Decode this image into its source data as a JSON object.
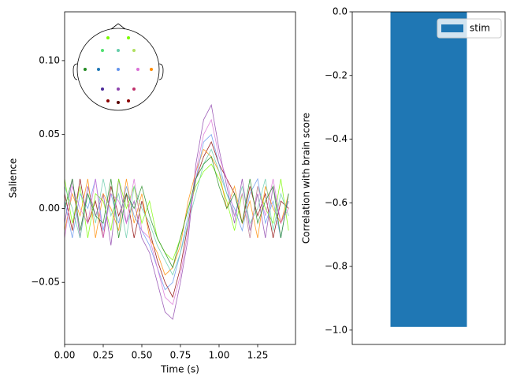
{
  "chart_data": [
    {
      "type": "line",
      "xlabel": "Time (s)",
      "ylabel": "Salience",
      "x": [
        0,
        0.05,
        0.1,
        0.15,
        0.2,
        0.25,
        0.3,
        0.35,
        0.4,
        0.45,
        0.5,
        0.55,
        0.6,
        0.65,
        0.7,
        0.75,
        0.8,
        0.85,
        0.9,
        0.95,
        1.0,
        1.05,
        1.1,
        1.15,
        1.2,
        1.25,
        1.3,
        1.35,
        1.4,
        1.45
      ],
      "series": [
        {
          "color": "#8b0000",
          "values": [
            0.01,
            -0.015,
            0.02,
            -0.01,
            0.005,
            -0.02,
            0.015,
            -0.005,
            0.01,
            -0.02,
            0.005,
            -0.015,
            -0.035,
            -0.05,
            -0.06,
            -0.04,
            -0.01,
            0.02,
            0.035,
            0.045,
            0.03,
            0.02,
            0.01,
            -0.01,
            0.015,
            -0.005,
            0.01,
            -0.02,
            0.005,
            0.0
          ]
        },
        {
          "color": "#8e44ad",
          "values": [
            -0.01,
            0.02,
            -0.02,
            0.015,
            -0.005,
            0.01,
            -0.025,
            0.02,
            -0.01,
            0.005,
            -0.02,
            -0.03,
            -0.05,
            -0.07,
            -0.075,
            -0.05,
            -0.02,
            0.03,
            0.06,
            0.07,
            0.04,
            0.015,
            -0.01,
            0.02,
            -0.015,
            0.01,
            -0.02,
            0.015,
            -0.01,
            0.005
          ]
        },
        {
          "color": "#7cfc00",
          "values": [
            0.02,
            -0.01,
            0.015,
            -0.02,
            0.01,
            0.005,
            -0.015,
            0.02,
            0.0,
            0.015,
            -0.01,
            0.005,
            -0.02,
            -0.03,
            -0.035,
            -0.02,
            0.0,
            0.015,
            0.025,
            0.03,
            0.02,
            0.005,
            -0.015,
            0.01,
            -0.02,
            0.015,
            0.0,
            -0.01,
            0.02,
            -0.015
          ]
        },
        {
          "color": "#ff8c00",
          "values": [
            -0.015,
            0.01,
            -0.005,
            0.02,
            -0.02,
            0.01,
            0.0,
            -0.015,
            0.02,
            -0.01,
            0.01,
            -0.02,
            -0.03,
            -0.045,
            -0.04,
            -0.025,
            0.005,
            0.025,
            0.04,
            0.035,
            0.025,
            0.0,
            0.015,
            -0.01,
            0.005,
            -0.02,
            0.015,
            0.0,
            -0.01,
            0.01
          ]
        },
        {
          "color": "#6495ed",
          "values": [
            0.005,
            -0.02,
            0.01,
            0.0,
            0.02,
            -0.015,
            0.01,
            -0.01,
            0.015,
            -0.005,
            -0.015,
            -0.025,
            -0.04,
            -0.055,
            -0.05,
            -0.03,
            -0.005,
            0.02,
            0.045,
            0.05,
            0.03,
            0.01,
            0.0,
            -0.015,
            0.01,
            0.02,
            -0.01,
            0.005,
            -0.02,
            0.01
          ]
        },
        {
          "color": "#66cdaa",
          "values": [
            0.015,
            0.0,
            -0.02,
            0.01,
            -0.01,
            0.02,
            -0.005,
            0.01,
            -0.02,
            0.015,
            0.0,
            -0.01,
            -0.025,
            -0.035,
            -0.045,
            -0.03,
            -0.01,
            0.01,
            0.03,
            0.04,
            0.025,
            0.01,
            -0.005,
            0.015,
            -0.01,
            0.0,
            0.02,
            -0.015,
            0.01,
            -0.005
          ]
        },
        {
          "color": "#da70d6",
          "values": [
            -0.02,
            0.015,
            0.0,
            -0.01,
            0.02,
            -0.02,
            0.01,
            0.005,
            -0.01,
            0.02,
            -0.015,
            -0.02,
            -0.04,
            -0.06,
            -0.065,
            -0.045,
            -0.015,
            0.025,
            0.05,
            0.06,
            0.035,
            0.02,
            -0.005,
            0.01,
            -0.02,
            0.015,
            -0.005,
            0.02,
            -0.01,
            0.0
          ]
        },
        {
          "color": "#228b22",
          "values": [
            0.0,
            0.02,
            -0.015,
            0.01,
            -0.005,
            -0.01,
            0.02,
            -0.02,
            0.01,
            0.0,
            0.015,
            -0.005,
            -0.02,
            -0.03,
            -0.04,
            -0.02,
            0.0,
            0.02,
            0.03,
            0.035,
            0.015,
            0.0,
            0.01,
            -0.01,
            0.02,
            -0.01,
            0.005,
            0.015,
            -0.02,
            0.01
          ]
        }
      ],
      "xlim": [
        0,
        1.495
      ],
      "ylim": [
        -0.092,
        0.133
      ],
      "xticks": [
        {
          "value": 0,
          "label": "0.00"
        },
        {
          "value": 0.25,
          "label": "0.25"
        },
        {
          "value": 0.5,
          "label": "0.50"
        },
        {
          "value": 0.75,
          "label": "0.75"
        },
        {
          "value": 1,
          "label": "1.00"
        },
        {
          "value": 1.25,
          "label": "1.25"
        }
      ],
      "yticks": [
        {
          "value": -0.05,
          "label": "−0.05"
        },
        {
          "value": 0,
          "label": "0.00"
        },
        {
          "value": 0.05,
          "label": "0.05"
        },
        {
          "value": 0.1,
          "label": "0.10"
        }
      ]
    },
    {
      "type": "bar",
      "ylabel": "Correlation with brain score",
      "categories": [
        null
      ],
      "series": [
        {
          "name": "stim",
          "color": "#1f77b4",
          "values": [
            -0.99
          ]
        }
      ],
      "ylim": [
        -1.045,
        0
      ],
      "legend": "upper right",
      "yticks": [
        {
          "value": -1,
          "label": "−1.0"
        },
        {
          "value": -0.8,
          "label": "−0.8"
        },
        {
          "value": -0.6,
          "label": "−0.6"
        },
        {
          "value": -0.4,
          "label": "−0.4"
        },
        {
          "value": -0.2,
          "label": "−0.2"
        },
        {
          "value": 0,
          "label": "0.0"
        }
      ]
    }
  ]
}
